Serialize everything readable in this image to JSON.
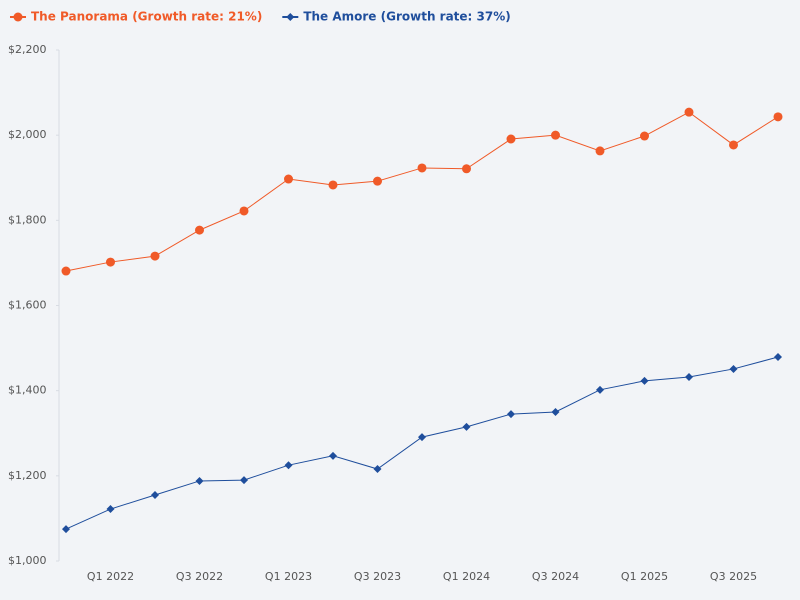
{
  "chart_data": {
    "type": "line",
    "categories": [
      null,
      "Q1 2022",
      null,
      "Q3 2022",
      null,
      "Q1 2023",
      null,
      "Q3 2023",
      null,
      "Q1 2024",
      null,
      "Q3 2024",
      null,
      "Q1 2025",
      null,
      "Q3 2025",
      null
    ],
    "series": [
      {
        "name": "The Panorama (Growth rate: 21%)",
        "color": "#f05a28",
        "marker": "circle",
        "values": [
          1681,
          1702,
          1716,
          1777,
          1822,
          1897,
          1883,
          1892,
          1923,
          1921,
          1991,
          2000,
          1963,
          1998,
          2054,
          1977,
          2043
        ]
      },
      {
        "name": "The Amore (Growth rate: 37%)",
        "color": "#1f4e9c",
        "marker": "diamond",
        "values": [
          1075,
          1122,
          1155,
          1188,
          1190,
          1225,
          1247,
          1216,
          1291,
          1315,
          1345,
          1350,
          1402,
          1423,
          1432,
          1451,
          1479
        ]
      }
    ],
    "ylim": [
      1000,
      2200
    ],
    "yticks": [
      {
        "value": 1000,
        "label": "$1,000"
      },
      {
        "value": 1200,
        "label": "$1,200"
      },
      {
        "value": 1400,
        "label": "$1,400"
      },
      {
        "value": 1600,
        "label": "$1,600"
      },
      {
        "value": 1800,
        "label": "$1,800"
      },
      {
        "value": 2000,
        "label": "$2,000"
      },
      {
        "value": 2200,
        "label": "$2,200"
      }
    ],
    "grid": false,
    "legend": "top-left"
  }
}
